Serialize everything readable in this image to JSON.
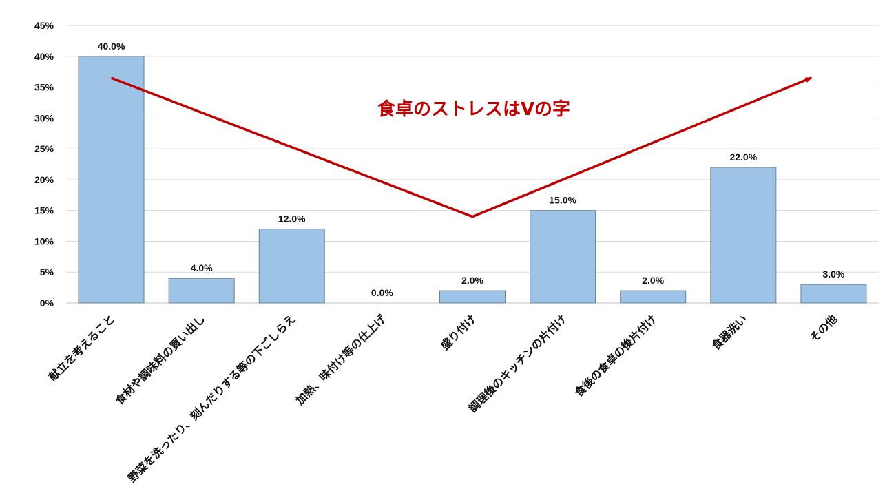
{
  "chart_data": {
    "type": "bar",
    "title": "",
    "xlabel": "",
    "ylabel": "",
    "categories": [
      "献立を考えること",
      "食材や調味料の買い出し",
      "野菜を洗ったり、刻んだりする等の下ごしらえ",
      "加熱、味付け等の仕上げ",
      "盛り付け",
      "調理後のキッチンの片付け",
      "食後の食卓の後片付け",
      "食器洗い",
      "その他"
    ],
    "values": [
      40.0,
      4.0,
      12.0,
      0.0,
      2.0,
      15.0,
      2.0,
      22.0,
      3.0
    ],
    "data_labels": [
      "40.0%",
      "4.0%",
      "12.0%",
      "0.0%",
      "2.0%",
      "15.0%",
      "2.0%",
      "22.0%",
      "3.0%"
    ],
    "ylim": [
      0,
      45
    ],
    "yticks": [
      0,
      5,
      10,
      15,
      20,
      25,
      30,
      35,
      40,
      45
    ],
    "ytick_labels": [
      "0%",
      "5%",
      "10%",
      "15%",
      "20%",
      "25%",
      "30%",
      "35%",
      "40%",
      "45%"
    ],
    "grid": true,
    "legend": "none",
    "bar_color": "#9dc3e6",
    "bar_edge_color": "#6f7f8f",
    "grid_color": "#d9d9d9",
    "annotation": {
      "text": "食卓のストレスはVの字",
      "color": "#c00000",
      "arrow_points": [
        {
          "category_index": 0,
          "value": 36.5
        },
        {
          "category_index": 4,
          "value": 14.0
        },
        {
          "category_index": 7.75,
          "value": 36.5
        }
      ],
      "text_anchor": {
        "category_index": 4,
        "value": 31.5
      }
    }
  }
}
